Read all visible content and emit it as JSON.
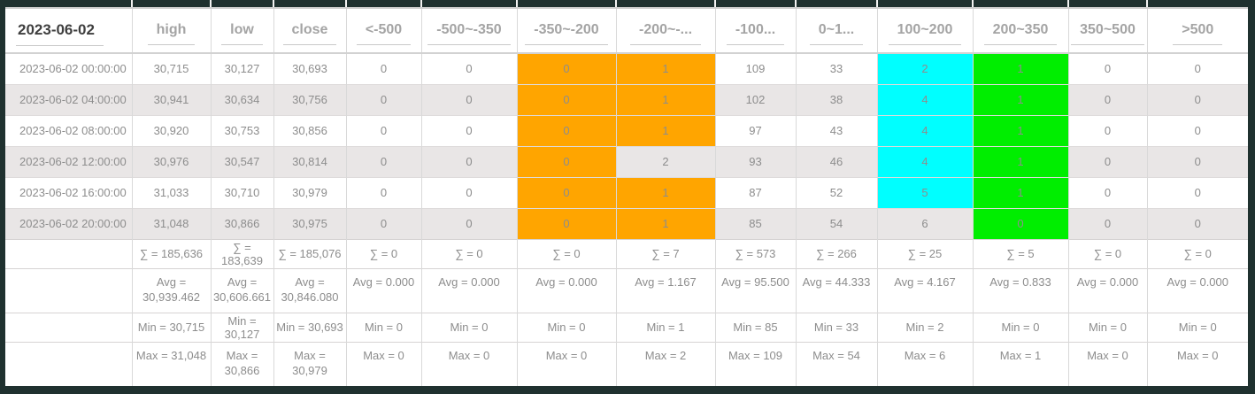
{
  "table": {
    "title_header": "2023-06-02",
    "columns": [
      {
        "key": "date",
        "label": "2023-06-02"
      },
      {
        "key": "high",
        "label": "high"
      },
      {
        "key": "low",
        "label": "low"
      },
      {
        "key": "close",
        "label": "close"
      },
      {
        "key": "lt-500",
        "label": "<-500"
      },
      {
        "key": "n500-n350",
        "label": "-500~-350"
      },
      {
        "key": "n350-n200",
        "label": "-350~-200"
      },
      {
        "key": "n200-n100",
        "label": "-200~-..."
      },
      {
        "key": "n100-0",
        "label": "-100..."
      },
      {
        "key": "0-100",
        "label": "0~1..."
      },
      {
        "key": "100-200",
        "label": "100~200"
      },
      {
        "key": "200-350",
        "label": "200~350"
      },
      {
        "key": "350-500",
        "label": "350~500"
      },
      {
        "key": "gt500",
        "label": ">500"
      }
    ],
    "rows": [
      {
        "cells": [
          "2023-06-02 00:00:00",
          "30,715",
          "30,127",
          "30,693",
          "0",
          "0",
          "0",
          "1",
          "109",
          "33",
          "2",
          "1",
          "0",
          "0"
        ],
        "highlights": {
          "6": "orange",
          "7": "orange",
          "10": "cyan",
          "11": "green"
        }
      },
      {
        "cells": [
          "2023-06-02 04:00:00",
          "30,941",
          "30,634",
          "30,756",
          "0",
          "0",
          "0",
          "1",
          "102",
          "38",
          "4",
          "1",
          "0",
          "0"
        ],
        "highlights": {
          "6": "orange",
          "7": "orange",
          "10": "cyan",
          "11": "green"
        }
      },
      {
        "cells": [
          "2023-06-02 08:00:00",
          "30,920",
          "30,753",
          "30,856",
          "0",
          "0",
          "0",
          "1",
          "97",
          "43",
          "4",
          "1",
          "0",
          "0"
        ],
        "highlights": {
          "6": "orange",
          "7": "orange",
          "10": "cyan",
          "11": "green"
        }
      },
      {
        "cells": [
          "2023-06-02 12:00:00",
          "30,976",
          "30,547",
          "30,814",
          "0",
          "0",
          "0",
          "2",
          "93",
          "46",
          "4",
          "1",
          "0",
          "0"
        ],
        "highlights": {
          "6": "orange",
          "10": "cyan",
          "11": "green"
        }
      },
      {
        "cells": [
          "2023-06-02 16:00:00",
          "31,033",
          "30,710",
          "30,979",
          "0",
          "0",
          "0",
          "1",
          "87",
          "52",
          "5",
          "1",
          "0",
          "0"
        ],
        "highlights": {
          "6": "orange",
          "7": "orange",
          "10": "cyan",
          "11": "green"
        }
      },
      {
        "cells": [
          "2023-06-02 20:00:00",
          "31,048",
          "30,866",
          "30,975",
          "0",
          "0",
          "0",
          "1",
          "85",
          "54",
          "6",
          "0",
          "0",
          "0"
        ],
        "highlights": {
          "6": "orange",
          "7": "orange",
          "11": "green"
        }
      }
    ],
    "summary_rows": [
      {
        "name": "sigma",
        "cells": [
          "",
          "∑ = 185,636",
          "∑ = 183,639",
          "∑ = 185,076",
          "∑ = 0",
          "∑ = 0",
          "∑ = 0",
          "∑ = 7",
          "∑ = 573",
          "∑ = 266",
          "∑ = 25",
          "∑ = 5",
          "∑ = 0",
          "∑ = 0"
        ]
      },
      {
        "name": "avg",
        "cells": [
          "",
          "Avg = 30,939.462",
          "Avg = 30,606.661",
          "Avg = 30,846.080",
          "Avg = 0.000",
          "Avg = 0.000",
          "Avg = 0.000",
          "Avg = 1.167",
          "Avg = 95.500",
          "Avg = 44.333",
          "Avg = 4.167",
          "Avg = 0.833",
          "Avg = 0.000",
          "Avg = 0.000"
        ]
      },
      {
        "name": "min",
        "cells": [
          "",
          "Min = 30,715",
          "Min = 30,127",
          "Min = 30,693",
          "Min = 0",
          "Min = 0",
          "Min = 0",
          "Min = 1",
          "Min = 85",
          "Min = 33",
          "Min = 2",
          "Min = 0",
          "Min = 0",
          "Min = 0"
        ]
      },
      {
        "name": "max",
        "cells": [
          "",
          "Max = 31,048",
          "Max = 30,866",
          "Max = 30,979",
          "Max = 0",
          "Max = 0",
          "Max = 0",
          "Max = 2",
          "Max = 109",
          "Max = 54",
          "Max = 6",
          "Max = 1",
          "Max = 0",
          "Max = 0"
        ]
      }
    ]
  },
  "colors": {
    "frame": "#1f312f",
    "highlight_orange": "#ffa500",
    "highlight_cyan": "#00ffff",
    "highlight_green": "#00ee00",
    "row_stripe": "#e9e6e6",
    "header_text": "#a4a4a4",
    "cell_text": "#8d8d8d"
  }
}
